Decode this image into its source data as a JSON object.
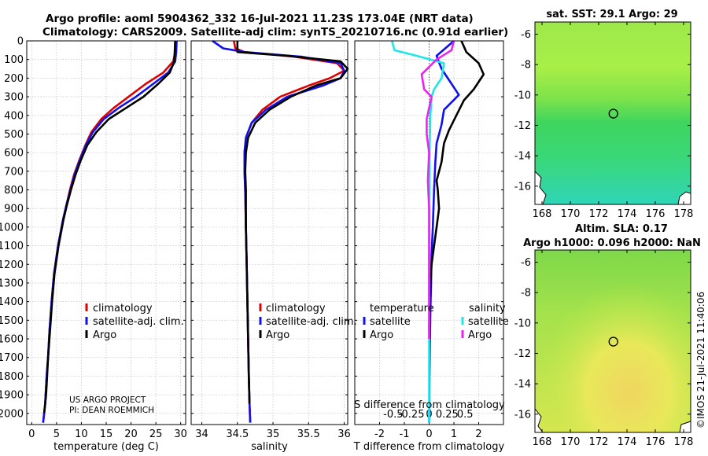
{
  "header": {
    "line1": "Argo profile: aoml 5904362_332 16-Jul-2021 11.23S 173.04E (NRT data)",
    "line2": "Climatology: CARS2009. Satellite-adj clim: synTS_20210716.nc (0.91d earlier)"
  },
  "colors": {
    "climatology": "#e00000",
    "satellite": "#1010ee",
    "argo": "#000000",
    "argo_salinity_diff": "#ee22ee",
    "satellite_salinity_diff": "#22e6e6"
  },
  "credits": {
    "line1": "US ARGO PROJECT",
    "line2": "PI: DEAN ROEMMICH"
  },
  "timestamp": "©IMOS 21-Jul-2021 11:40:06",
  "chart_data": [
    {
      "type": "line",
      "id": "temperature",
      "xlabel": "temperature (deg C)",
      "ylabel": "",
      "xlim": [
        -1,
        31
      ],
      "ylim": [
        2060,
        0
      ],
      "xticks": [
        0,
        5,
        10,
        15,
        20,
        25,
        30
      ],
      "yticks": [
        0,
        100,
        200,
        300,
        400,
        500,
        600,
        700,
        800,
        900,
        1000,
        1100,
        1200,
        1300,
        1400,
        1500,
        1600,
        1700,
        1800,
        1900,
        2000
      ],
      "grid": true,
      "legend": {
        "position": "lower-right",
        "entries": [
          "climatology",
          "satellite-adj. clim.",
          "Argo"
        ]
      },
      "series": [
        {
          "name": "climatology",
          "color_key": "climatology",
          "x": [
            28.9,
            28.9,
            28.5,
            26.5,
            23,
            19.5,
            16.5,
            14,
            12,
            10.8,
            9.6,
            8.5,
            7.7,
            7,
            6.3,
            5.3,
            4.5,
            4,
            3.6,
            3.3,
            3,
            2.8,
            2.7,
            2.5,
            2.3
          ],
          "y": [
            0,
            60,
            110,
            170,
            230,
            300,
            360,
            420,
            490,
            560,
            640,
            720,
            800,
            880,
            960,
            1100,
            1250,
            1400,
            1550,
            1700,
            1800,
            1900,
            1950,
            2000,
            2050
          ]
        },
        {
          "name": "satellite-adj. clim.",
          "color_key": "satellite",
          "x": [
            29.2,
            29.1,
            28.9,
            27.5,
            24.5,
            21,
            17.5,
            14.5,
            12.3,
            10.9,
            9.7,
            8.6,
            7.8,
            7,
            6.3,
            5.3,
            4.5,
            4,
            3.6,
            3.3,
            3,
            2.8,
            2.7,
            2.5,
            2.3
          ],
          "y": [
            0,
            60,
            110,
            170,
            230,
            300,
            360,
            420,
            490,
            560,
            640,
            720,
            800,
            880,
            960,
            1100,
            1250,
            1400,
            1550,
            1700,
            1800,
            1900,
            1950,
            2000,
            2050
          ]
        },
        {
          "name": "Argo",
          "color_key": "argo",
          "x": [
            28.9,
            28.8,
            28.7,
            27.8,
            25.5,
            22.5,
            19,
            15.5,
            13,
            11.2,
            9.9,
            8.8,
            7.9,
            7.1,
            6.4,
            5.4,
            4.6,
            4.1,
            3.7,
            3.3,
            3.1,
            2.9,
            2.7,
            2.5
          ],
          "y": [
            0,
            60,
            110,
            170,
            230,
            300,
            360,
            420,
            490,
            560,
            640,
            720,
            800,
            880,
            960,
            1100,
            1250,
            1400,
            1550,
            1700,
            1800,
            1900,
            1950,
            2000
          ]
        }
      ]
    },
    {
      "type": "line",
      "id": "salinity",
      "xlabel": "salinity",
      "ylabel": "",
      "xlim": [
        33.85,
        36.05
      ],
      "ylim": [
        2060,
        0
      ],
      "xticks": [
        34,
        34.5,
        35,
        35.5,
        36
      ],
      "yticks": [
        0,
        100,
        200,
        300,
        400,
        500,
        600,
        700,
        800,
        900,
        1000,
        1100,
        1200,
        1300,
        1400,
        1500,
        1600,
        1700,
        1800,
        1900,
        2000
      ],
      "grid": true,
      "legend": {
        "position": "lower-right",
        "entries": [
          "climatology",
          "satellite-adj. clim.",
          "Argo"
        ]
      },
      "series": [
        {
          "name": "climatology",
          "color_key": "climatology",
          "x": [
            34.45,
            34.47,
            34.6,
            35.3,
            35.9,
            36.0,
            35.8,
            35.5,
            35.1,
            34.85,
            34.7,
            34.62,
            34.6,
            34.6,
            34.61,
            34.62,
            34.63,
            34.64,
            34.65,
            34.66,
            34.67,
            34.68
          ],
          "y": [
            0,
            40,
            60,
            85,
            120,
            160,
            200,
            240,
            300,
            370,
            440,
            520,
            600,
            700,
            800,
            1000,
            1200,
            1400,
            1600,
            1800,
            1950,
            2050
          ]
        },
        {
          "name": "satellite-adj. clim.",
          "color_key": "satellite",
          "x": [
            34.15,
            34.3,
            34.6,
            35.4,
            35.95,
            36.0,
            35.95,
            35.7,
            35.2,
            34.9,
            34.7,
            34.62,
            34.6,
            34.6,
            34.61,
            34.62,
            34.63,
            34.64,
            34.65,
            34.66,
            34.67,
            34.68
          ],
          "y": [
            0,
            40,
            60,
            85,
            120,
            160,
            200,
            240,
            300,
            370,
            440,
            520,
            600,
            700,
            800,
            1000,
            1200,
            1400,
            1600,
            1800,
            1950,
            2050
          ]
        },
        {
          "name": "Argo",
          "color_key": "argo",
          "x": [
            34.5,
            34.5,
            34.5,
            35.2,
            35.95,
            36.05,
            35.95,
            35.6,
            35.25,
            34.95,
            34.75,
            34.65,
            34.62,
            34.61,
            34.62,
            34.62,
            34.63,
            34.64,
            34.65,
            34.66,
            34.67
          ],
          "y": [
            0,
            40,
            60,
            80,
            110,
            150,
            200,
            240,
            300,
            370,
            440,
            520,
            600,
            700,
            800,
            1000,
            1200,
            1400,
            1600,
            1800,
            1950
          ]
        }
      ]
    },
    {
      "type": "line",
      "id": "difference",
      "xlabel": "T difference from climatology",
      "xlabel_top": "S difference from climatology",
      "xlim": [
        -3,
        3
      ],
      "ylim": [
        2060,
        0
      ],
      "xticks": [
        -2,
        -1,
        0,
        1,
        2
      ],
      "xticklabels": [
        "-2",
        "-1",
        "0",
        "1",
        "2"
      ],
      "s_ticklabels": [
        "-0.5",
        "-0.25",
        "0",
        "0.25",
        "0.5"
      ],
      "yticks": [
        0,
        100,
        200,
        300,
        400,
        500,
        600,
        700,
        800,
        900,
        1000,
        1100,
        1200,
        1300,
        1400,
        1500,
        1600,
        1700,
        1800,
        1900,
        2000
      ],
      "grid": true,
      "legend_temperature": {
        "title": "temperature",
        "entries": [
          "satellite",
          "Argo"
        ]
      },
      "legend_salinity": {
        "title": "salinity",
        "entries": [
          "satellite",
          "Argo"
        ]
      },
      "series": [
        {
          "name": "temperature satellite",
          "color_key": "satellite",
          "x": [
            1.0,
            0.3,
            0.5,
            0.9,
            1.2,
            0.6,
            0.5,
            0.3,
            0.25,
            0.2,
            0.15,
            0.1,
            0.08,
            0.05,
            0.04,
            0.03,
            0.02,
            0.01,
            0.01,
            0.0
          ],
          "y": [
            0,
            80,
            150,
            230,
            290,
            370,
            450,
            550,
            650,
            800,
            1000,
            1150,
            1300,
            1450,
            1550,
            1650,
            1750,
            1850,
            1950,
            2050
          ]
        },
        {
          "name": "temperature Argo",
          "color_key": "argo",
          "x": [
            1.3,
            1.5,
            2.0,
            2.2,
            1.8,
            1.4,
            1.1,
            0.8,
            0.6,
            0.5,
            0.3,
            0.35,
            0.4,
            0.3,
            0.2,
            0.1,
            0.05,
            0.02,
            0.01,
            0.0
          ],
          "y": [
            0,
            60,
            120,
            180,
            260,
            320,
            400,
            480,
            550,
            650,
            750,
            800,
            900,
            1000,
            1100,
            1200,
            1300,
            1400,
            1500,
            1550
          ]
        },
        {
          "name": "salinity satellite",
          "color_key": "satellite_salinity_diff",
          "x": [
            -1.5,
            -1.4,
            -0.5,
            0.6,
            0.5,
            0.2,
            0.1,
            0.05,
            0.02,
            0.0,
            0.0,
            0.0,
            0.0
          ],
          "y": [
            0,
            50,
            80,
            120,
            200,
            260,
            300,
            400,
            600,
            900,
            1300,
            1700,
            2050
          ]
        },
        {
          "name": "salinity Argo",
          "color_key": "argo_salinity_diff",
          "x": [
            1.0,
            0.9,
            0.3,
            -0.3,
            -0.2,
            0.1,
            0.0,
            -0.1,
            -0.1,
            0.0,
            -0.05,
            0.0,
            0.0,
            0.0
          ],
          "y": [
            0,
            50,
            100,
            180,
            260,
            300,
            360,
            420,
            500,
            600,
            750,
            900,
            1200,
            1600
          ]
        }
      ]
    },
    {
      "type": "heatmap",
      "id": "sst-map",
      "title": "sat. SST: 29.1 Argo: 29",
      "xticks": [
        168,
        170,
        172,
        174,
        176,
        178
      ],
      "yticks": [
        -6,
        -8,
        -10,
        -12,
        -14,
        -16
      ],
      "xlim": [
        167.5,
        178.5
      ],
      "ylim": [
        -17.2,
        -5.2
      ],
      "float_position": [
        173.04,
        -11.23
      ]
    },
    {
      "type": "heatmap",
      "id": "sla-map",
      "title": "Altim. SLA: 0.17",
      "subtitle": "Argo h1000: 0.096 h2000: NaN",
      "xticks": [
        168,
        170,
        172,
        174,
        176,
        178
      ],
      "yticks": [
        -6,
        -8,
        -10,
        -12,
        -14,
        -16
      ],
      "xlim": [
        167.5,
        178.5
      ],
      "ylim": [
        -17.2,
        -5.2
      ],
      "float_position": [
        173.04,
        -11.23
      ]
    }
  ]
}
